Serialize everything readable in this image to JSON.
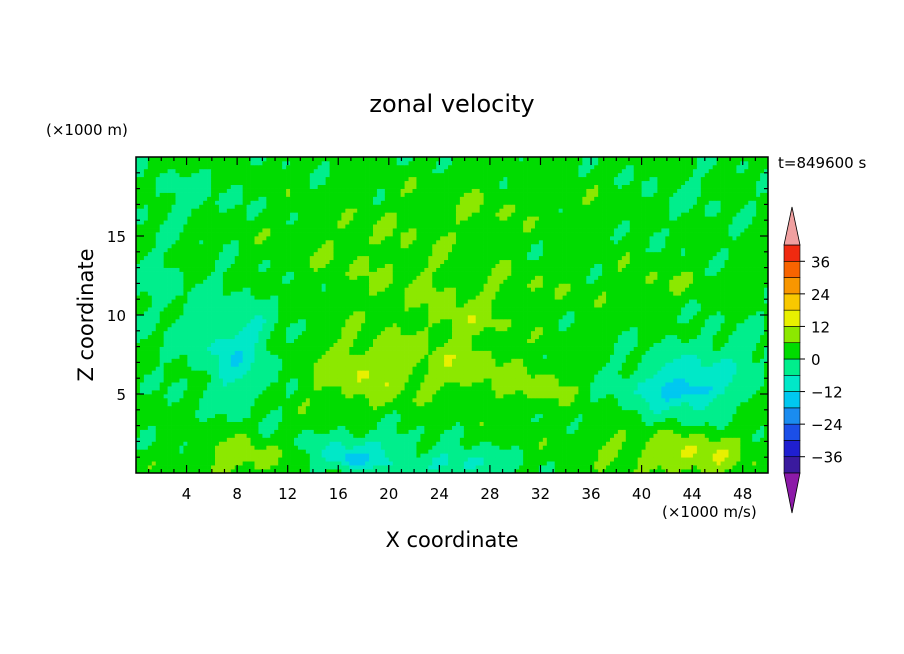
{
  "chart_data": {
    "type": "heatmap",
    "title": "zonal velocity",
    "xlabel": "X coordinate",
    "ylabel": "Z coordinate",
    "y_unit": "(×1000 m)",
    "time_label": "t=849600 s",
    "colorbar_unit": "(×1000 m/s)",
    "xlim": [
      0,
      50
    ],
    "ylim": [
      0,
      20
    ],
    "xticks": [
      4,
      8,
      12,
      16,
      20,
      24,
      28,
      32,
      36,
      40,
      44,
      48
    ],
    "yticks": [
      5,
      10,
      15
    ],
    "colorbar": {
      "levels": [
        -42,
        -36,
        -30,
        -24,
        -18,
        -12,
        -6,
        0,
        6,
        12,
        18,
        24,
        30,
        36,
        42
      ],
      "colors": [
        "#5a1ea0",
        "#3a1a9e",
        "#1f1fd0",
        "#1b4fe8",
        "#1a8cf0",
        "#00c8f0",
        "#00e8c8",
        "#00ee8c",
        "#00dc00",
        "#8ce800",
        "#e8f000",
        "#f8c800",
        "#f89600",
        "#f86400",
        "#f02a10",
        "#f0a0a0"
      ],
      "under_color": "#8c1aa8",
      "over_color": "#f0a0a0",
      "labels": [
        36,
        24,
        12,
        0,
        -12,
        -24,
        -36
      ]
    },
    "background_value": 2,
    "features": [
      {
        "x": 18,
        "z": 6.5,
        "sx": 4.5,
        "sz": 2.2,
        "value": 9
      },
      {
        "x": 26,
        "z": 6.8,
        "sx": 4.0,
        "sz": 1.8,
        "value": 7
      },
      {
        "x": 32,
        "z": 5.6,
        "sx": 3.0,
        "sz": 1.2,
        "value": 6
      },
      {
        "x": 26,
        "z": 9.5,
        "sx": 3.0,
        "sz": 1.0,
        "value": 5
      },
      {
        "x": 8,
        "z": 7.5,
        "sx": 2.5,
        "sz": 3.0,
        "value": -9
      },
      {
        "x": 7,
        "z": 9.0,
        "sx": 6.0,
        "sz": 4.0,
        "value": -3
      },
      {
        "x": 43,
        "z": 5.5,
        "sx": 4.5,
        "sz": 2.0,
        "value": -12
      },
      {
        "x": 43.5,
        "z": 5.2,
        "sx": 2.0,
        "sz": 0.6,
        "value": -8
      },
      {
        "x": 47,
        "z": 7.5,
        "sx": 4.0,
        "sz": 2.0,
        "value": -4
      },
      {
        "x": 8,
        "z": 1.0,
        "sx": 3.2,
        "sz": 1.3,
        "value": 8
      },
      {
        "x": 44,
        "z": 1.2,
        "sx": 4.5,
        "sz": 1.4,
        "value": 10
      },
      {
        "x": 37,
        "z": 2.0,
        "sx": 3.0,
        "sz": 1.2,
        "value": 4
      },
      {
        "x": 18,
        "z": 1.3,
        "sx": 4.0,
        "sz": 1.4,
        "value": -10
      },
      {
        "x": 17,
        "z": 0.9,
        "sx": 1.2,
        "sz": 0.5,
        "value": -9
      },
      {
        "x": 26,
        "z": 0.6,
        "sx": 3.5,
        "sz": 0.9,
        "value": -10
      },
      {
        "x": 25,
        "z": 11.5,
        "sx": 10.0,
        "sz": 2.0,
        "value": 4
      },
      {
        "x": 28,
        "z": 17.0,
        "sx": 9.0,
        "sz": 1.5,
        "value": 3
      },
      {
        "x": 18,
        "z": 14.5,
        "sx": 8.0,
        "sz": 2.0,
        "value": 3
      },
      {
        "x": 41,
        "z": 12.0,
        "sx": 3.0,
        "sz": 1.0,
        "value": 4
      },
      {
        "x": 4,
        "z": 17.5,
        "sx": 4.0,
        "sz": 1.5,
        "value": -4
      },
      {
        "x": 2,
        "z": 12.0,
        "sx": 2.0,
        "sz": 3.0,
        "value": -3
      },
      {
        "x": 44,
        "z": 17.5,
        "sx": 5.0,
        "sz": 2.0,
        "value": -2
      }
    ]
  }
}
